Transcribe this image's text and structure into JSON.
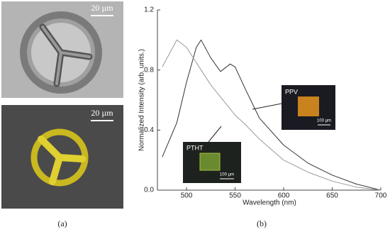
{
  "panels": {
    "a": {
      "label": "(a)",
      "scale_bars": [
        "20 µm",
        "20 µm"
      ]
    },
    "b": {
      "label": "(b)"
    }
  },
  "chart_data": {
    "type": "line",
    "y_label": "Normalized Intensity (arb. units.)",
    "x_label": "Wavelength (nm)",
    "x": [
      475,
      490,
      500,
      510,
      515,
      525,
      535,
      545,
      550,
      560,
      575,
      600,
      625,
      650,
      675,
      700
    ],
    "series": [
      {
        "name": "PPV",
        "color": "#333333",
        "values": [
          0.22,
          0.45,
          0.72,
          0.95,
          1.0,
          0.88,
          0.79,
          0.84,
          0.82,
          0.68,
          0.48,
          0.3,
          0.18,
          0.1,
          0.04,
          0.0
        ]
      },
      {
        "name": "PTHT",
        "color": "#9a9a9a",
        "values": [
          0.82,
          1.0,
          0.95,
          0.85,
          0.8,
          0.7,
          0.62,
          0.54,
          0.5,
          0.44,
          0.34,
          0.2,
          0.12,
          0.06,
          0.02,
          0.0
        ]
      }
    ],
    "inset_scale_bars": [
      "100 µm",
      "100 µm"
    ],
    "xlim": [
      470,
      700
    ],
    "ylim": [
      0,
      1.2
    ],
    "xticks": [
      500,
      550,
      600,
      650,
      700
    ],
    "yticks": [
      {
        "value": 0,
        "label": "0.0"
      },
      0.4,
      0.8,
      1.2
    ]
  }
}
